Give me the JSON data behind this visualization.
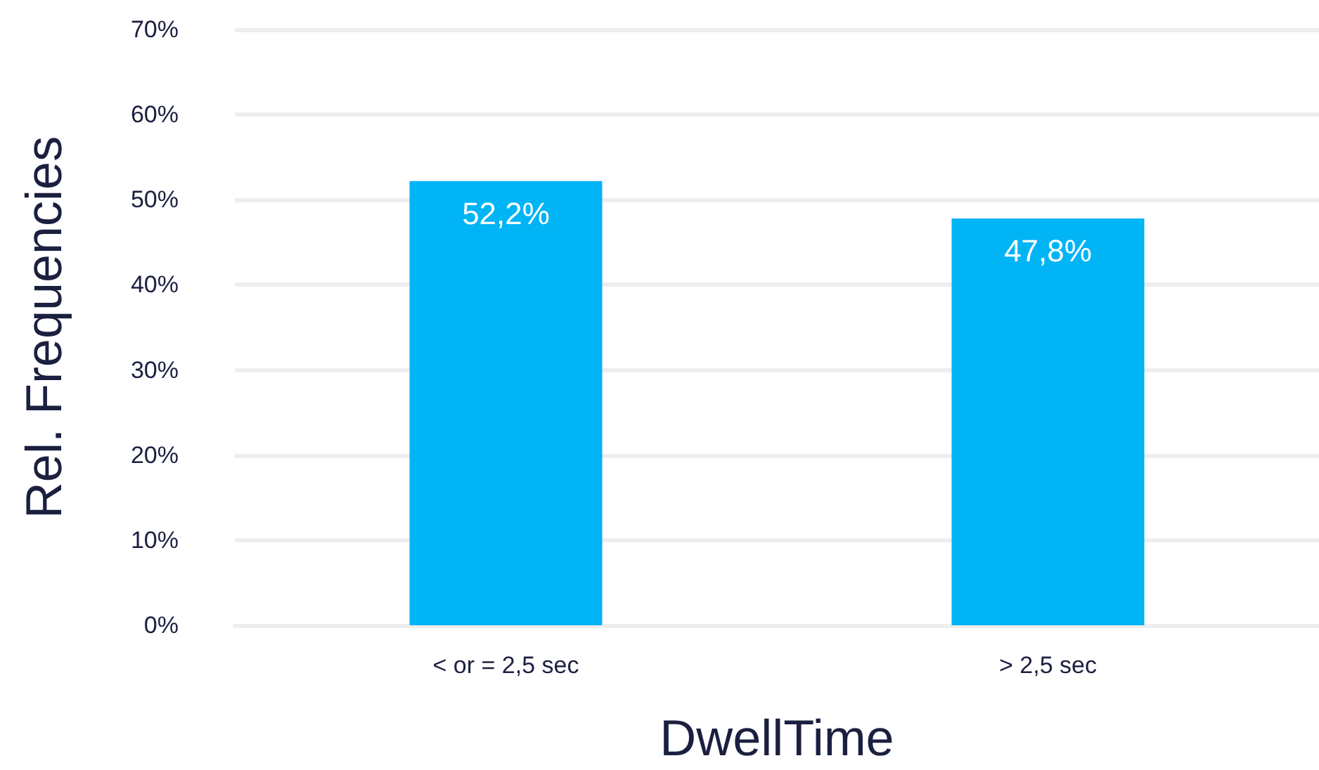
{
  "chart_data": {
    "type": "bar",
    "xlabel": "DwellTime",
    "ylabel": "Rel. Frequencies",
    "categories": [
      "< or = 2,5 sec",
      "> 2,5 sec"
    ],
    "values": [
      52.2,
      47.8
    ],
    "value_labels": [
      "52,2%",
      "47,8%"
    ],
    "color": "#00b4f5",
    "ylim": [
      0,
      70
    ],
    "yticks": [
      {
        "value": 0,
        "label": "0%"
      },
      {
        "value": 10,
        "label": "10%"
      },
      {
        "value": 20,
        "label": "20%"
      },
      {
        "value": 30,
        "label": "30%"
      },
      {
        "value": 40,
        "label": "40%"
      },
      {
        "value": 50,
        "label": "50%"
      },
      {
        "value": 60,
        "label": "60%"
      },
      {
        "value": 70,
        "label": "70%"
      }
    ],
    "grid": true
  }
}
